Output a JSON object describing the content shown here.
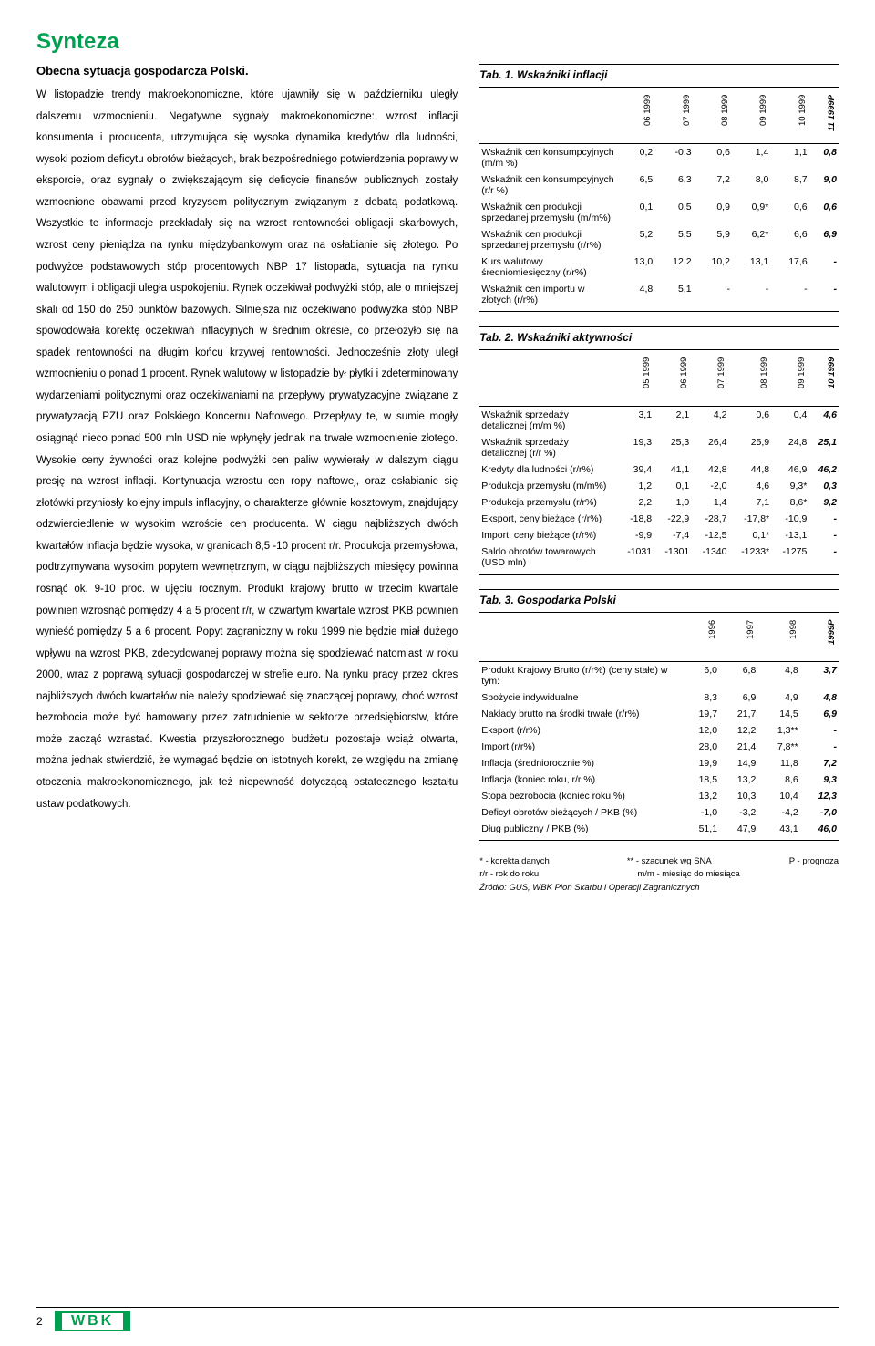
{
  "page_title": "Synteza",
  "left": {
    "subtitle": "Obecna sytuacja gospodarcza Polski.",
    "body": "W listopadzie trendy makroekonomiczne, które ujawniły się w październiku uległy dalszemu wzmocnieniu. Negatywne sygnały makroekonomiczne: wzrost inflacji konsumenta i producenta, utrzymująca się wysoka dynamika kredytów dla ludności, wysoki poziom deficytu obrotów bieżących, brak bezpośredniego potwierdzenia poprawy w eksporcie, oraz sygnały o zwiększającym się deficycie finansów publicznych zostały wzmocnione obawami przed kryzysem politycznym związanym z debatą podatkową. Wszystkie te informacje przekładały się na wzrost rentowności obligacji skarbowych, wzrost ceny pieniądza na rynku międzybankowym oraz na osłabianie się złotego. Po podwyżce podstawowych stóp procentowych NBP 17 listopada, sytuacja na rynku walutowym i obligacji uległa uspokojeniu. Rynek oczekiwał podwyżki stóp, ale o mniejszej skali od 150 do 250 punktów bazowych. Silniejsza niż oczekiwano podwyżka stóp NBP spowodowała korektę oczekiwań inflacyjnych w średnim okresie, co przełożyło się na spadek rentowności na długim końcu krzywej rentowności. Jednocześnie złoty uległ wzmocnieniu o ponad 1 procent. Rynek walutowy w listopadzie był płytki i zdeterminowany wydarzeniami politycznymi oraz oczekiwaniami na przepływy prywatyzacyjne związane z prywatyzacją PZU oraz Polskiego Koncernu Naftowego. Przepływy te, w sumie mogły osiągnąć nieco ponad 500 mln USD nie wpłynęły jednak na trwałe wzmocnienie złotego. Wysokie ceny żywności oraz kolejne podwyżki cen paliw wywierały w dalszym ciągu presję na wzrost inflacji. Kontynuacja wzrostu cen ropy naftowej, oraz osłabianie się złotówki przyniosły kolejny impuls inflacyjny, o charakterze głównie kosztowym, znajdujący odzwierciedlenie w wysokim wzroście cen producenta. W ciągu najbliższych dwóch kwartałów inflacja będzie wysoka, w granicach 8,5 -10 procent r/r. Produkcja przemysłowa, podtrzymywana wysokim popytem wewnętrznym, w ciągu najbliższych miesięcy powinna rosnąć ok. 9-10 proc. w ujęciu rocznym. Produkt krajowy brutto w trzecim kwartale powinien wzrosnąć pomiędzy 4 a 5 procent r/r, w czwartym kwartale wzrost PKB powinien wynieść pomiędzy 5 a 6 procent. Popyt zagraniczny w roku 1999 nie będzie miał dużego wpływu na wzrost PKB, zdecydowanej poprawy można się spodziewać natomiast w roku 2000, wraz z poprawą sytuacji gospodarczej w strefie euro. Na rynku pracy przez okres najbliższych dwóch kwartałów nie należy spodziewać się znaczącej poprawy, choć wzrost bezrobocia może być hamowany przez zatrudnienie w sektorze przedsiębiorstw, które może zacząć wzrastać. Kwestia przyszłorocznego budżetu pozostaje wciąż otwarta, można jednak stwierdzić, że wymagać będzie on istotnych korekt, ze względu na zmianę otoczenia makroekonomicznego, jak też niepewność dotyczącą ostatecznego kształtu ustaw podatkowych."
  },
  "tables": {
    "t1": {
      "title": "Tab. 1. Wskaźniki inflacji",
      "headers": [
        "06 1999",
        "07 1999",
        "08 1999",
        "09 1999",
        "10 1999",
        "11 1999P"
      ],
      "rows": [
        {
          "label": "Wskaźnik cen konsumpcyjnych (m/m %)",
          "v": [
            "0,2",
            "-0,3",
            "0,6",
            "1,4",
            "1,1",
            "0,8"
          ]
        },
        {
          "label": "Wskaźnik cen konsumpcyjnych (r/r %)",
          "v": [
            "6,5",
            "6,3",
            "7,2",
            "8,0",
            "8,7",
            "9,0"
          ]
        },
        {
          "label": "Wskaźnik cen produkcji sprzedanej przemysłu (m/m%)",
          "v": [
            "0,1",
            "0,5",
            "0,9",
            "0,9*",
            "0,6",
            "0,6"
          ]
        },
        {
          "label": "Wskaźnik cen produkcji sprzedanej przemysłu (r/r%)",
          "v": [
            "5,2",
            "5,5",
            "5,9",
            "6,2*",
            "6,6",
            "6,9"
          ]
        },
        {
          "label": "Kurs walutowy średniomiesięczny (r/r%)",
          "v": [
            "13,0",
            "12,2",
            "10,2",
            "13,1",
            "17,6",
            "-"
          ]
        },
        {
          "label": "Wskaźnik cen importu w złotych (r/r%)",
          "v": [
            "4,8",
            "5,1",
            "-",
            "-",
            "-",
            "-"
          ]
        }
      ]
    },
    "t2": {
      "title": "Tab. 2. Wskaźniki aktywności",
      "headers": [
        "05 1999",
        "06 1999",
        "07 1999",
        "08 1999",
        "09 1999",
        "10 1999"
      ],
      "rows": [
        {
          "label": "Wskaźnik sprzedaży detalicznej (m/m %)",
          "v": [
            "3,1",
            "2,1",
            "4,2",
            "0,6",
            "0,4",
            "4,6"
          ]
        },
        {
          "label": "Wskaźnik sprzedaży detalicznej (r/r %)",
          "v": [
            "19,3",
            "25,3",
            "26,4",
            "25,9",
            "24,8",
            "25,1"
          ]
        },
        {
          "label": "Kredyty dla ludności (r/r%)",
          "v": [
            "39,4",
            "41,1",
            "42,8",
            "44,8",
            "46,9",
            "46,2"
          ]
        },
        {
          "label": "Produkcja przemysłu (m/m%)",
          "v": [
            "1,2",
            "0,1",
            "-2,0",
            "4,6",
            "9,3*",
            "0,3"
          ]
        },
        {
          "label": "Produkcja przemysłu (r/r%)",
          "v": [
            "2,2",
            "1,0",
            "1,4",
            "7,1",
            "8,6*",
            "9,2"
          ]
        },
        {
          "label": "Eksport, ceny bieżące (r/r%)",
          "v": [
            "-18,8",
            "-22,9",
            "-28,7",
            "-17,8*",
            "-10,9",
            "-"
          ]
        },
        {
          "label": "Import, ceny bieżące (r/r%)",
          "v": [
            "-9,9",
            "-7,4",
            "-12,5",
            "0,1*",
            "-13,1",
            "-"
          ]
        },
        {
          "label": "Saldo obrotów towarowych (USD mln)",
          "v": [
            "-1031",
            "-1301",
            "-1340",
            "-1233*",
            "-1275",
            "-"
          ]
        }
      ]
    },
    "t3": {
      "title": "Tab. 3. Gospodarka Polski",
      "headers": [
        "1996",
        "1997",
        "1998",
        "1999P"
      ],
      "rows": [
        {
          "label": "Produkt Krajowy Brutto (r/r%) (ceny stałe) w tym:",
          "v": [
            "6,0",
            "6,8",
            "4,8",
            "3,7"
          ]
        },
        {
          "label": "Spożycie indywidualne",
          "v": [
            "8,3",
            "6,9",
            "4,9",
            "4,8"
          ]
        },
        {
          "label": "Nakłady brutto na środki trwałe (r/r%)",
          "v": [
            "19,7",
            "21,7",
            "14,5",
            "6,9"
          ]
        },
        {
          "label": "Eksport (r/r%)",
          "v": [
            "12,0",
            "12,2",
            "1,3**",
            "-"
          ]
        },
        {
          "label": "Import (r/r%)",
          "v": [
            "28,0",
            "21,4",
            "7,8**",
            "-"
          ]
        },
        {
          "label": "Inflacja (średniorocznie %)",
          "v": [
            "19,9",
            "14,9",
            "11,8",
            "7,2"
          ]
        },
        {
          "label": "Inflacja (koniec roku, r/r %)",
          "v": [
            "18,5",
            "13,2",
            "8,6",
            "9,3"
          ]
        },
        {
          "label": "Stopa bezrobocia (koniec roku %)",
          "v": [
            "13,2",
            "10,3",
            "10,4",
            "12,3"
          ]
        },
        {
          "label": "Deficyt obrotów bieżących / PKB (%)",
          "v": [
            "-1,0",
            "-3,2",
            "-4,2",
            "-7,0"
          ]
        },
        {
          "label": "Dług publiczny / PKB (%)",
          "v": [
            "51,1",
            "47,9",
            "43,1",
            "46,0"
          ]
        }
      ]
    }
  },
  "footnotes": {
    "l1a": "* - korekta danych",
    "l1b": "** - szacunek wg SNA",
    "l1c": "P - prognoza",
    "l2a": "r/r - rok do roku",
    "l2b": "m/m - miesiąc do miesiąca",
    "src": "Źródło: GUS, WBK Pion Skarbu i Operacji Zagranicznych"
  },
  "footer": {
    "page": "2",
    "logo": "WBK"
  }
}
